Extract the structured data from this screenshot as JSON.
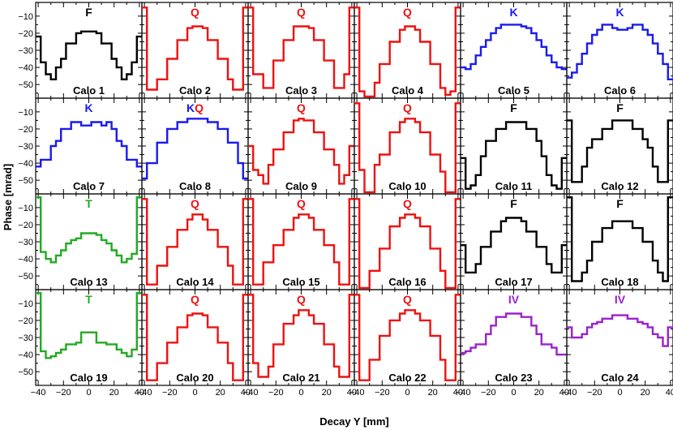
{
  "chart_data": {
    "type": "line",
    "xlabel": "Decay Y [mm]",
    "ylabel": "Phase [mrad]",
    "xlim": [
      -42,
      42
    ],
    "ylim": [
      -58,
      -2
    ],
    "x_ticks": [
      -40,
      -20,
      0,
      20,
      40
    ],
    "x_tick_labels": [
      "−40",
      "−20",
      "0",
      "20",
      "40"
    ],
    "y_ticks": [
      -10,
      -20,
      -30,
      -40,
      -50
    ],
    "y_tick_labels": [
      "−10",
      "−20",
      "−30",
      "−40",
      "−50"
    ],
    "x_edges": [
      -42,
      -38,
      -34,
      -30,
      -26,
      -22,
      -18,
      -14,
      -10,
      -6,
      -2,
      2,
      6,
      10,
      14,
      18,
      22,
      26,
      30,
      34,
      38,
      42
    ],
    "grid": false,
    "legend": "none",
    "category_colors": {
      "F": "#000000",
      "Q": "#ee1111",
      "K": "#1a1aee",
      "T": "#22aa22",
      "IV": "#9922cc"
    },
    "panels": [
      {
        "name": "Calo 1",
        "tag": "F",
        "values": [
          -22,
          -37,
          -44,
          -47,
          -40,
          -35,
          -26,
          -26,
          -20,
          -19,
          -19,
          -19,
          -20,
          -26,
          -26,
          -35,
          -40,
          -47,
          -44,
          -37,
          -22
        ]
      },
      {
        "name": "Calo 2",
        "tag": "Q",
        "values": [
          -5,
          -53,
          -53,
          -47,
          -47,
          -35,
          -35,
          -24,
          -24,
          -17,
          -16,
          -16,
          -17,
          -24,
          -24,
          -35,
          -35,
          -47,
          -53,
          -53,
          -5
        ]
      },
      {
        "name": "Calo 3",
        "tag": "Q",
        "values": [
          -5,
          -44,
          -44,
          -52,
          -52,
          -36,
          -36,
          -24,
          -24,
          -16,
          -16,
          -16,
          -17,
          -24,
          -24,
          -36,
          -36,
          -52,
          -52,
          -44,
          -5
        ]
      },
      {
        "name": "Calo 4",
        "tag": "Q",
        "values": [
          -5,
          -54,
          -57,
          -57,
          -49,
          -38,
          -38,
          -25,
          -25,
          -18,
          -16,
          -16,
          -18,
          -25,
          -25,
          -38,
          -38,
          -52,
          -56,
          -54,
          -5
        ]
      },
      {
        "name": "Calo 5",
        "tag": "K",
        "values": [
          -40,
          -41,
          -38,
          -33,
          -28,
          -24,
          -20,
          -17,
          -15,
          -15,
          -15,
          -15,
          -16,
          -17,
          -20,
          -24,
          -28,
          -33,
          -37,
          -40,
          -41
        ]
      },
      {
        "name": "Calo 6",
        "tag": "K",
        "values": [
          -46,
          -43,
          -38,
          -32,
          -26,
          -21,
          -18,
          -15,
          -15,
          -17,
          -18,
          -18,
          -17,
          -15,
          -15,
          -18,
          -21,
          -26,
          -32,
          -38,
          -47
        ]
      },
      {
        "name": "Calo 7",
        "tag": "K",
        "values": [
          -42,
          -38,
          -38,
          -30,
          -27,
          -20,
          -20,
          -16,
          -16,
          -18,
          -18,
          -16,
          -16,
          -18,
          -16,
          -20,
          -27,
          -30,
          -38,
          -38,
          -42
        ]
      },
      {
        "name": "Calo 8",
        "tag": "KQ",
        "values": [
          -49,
          -40,
          -40,
          -28,
          -28,
          -20,
          -20,
          -16,
          -16,
          -14,
          -14,
          -14,
          -14,
          -16,
          -16,
          -20,
          -20,
          -28,
          -28,
          -40,
          -49
        ]
      },
      {
        "name": "Calo 9",
        "tag": "Q",
        "values": [
          -30,
          -44,
          -47,
          -52,
          -41,
          -32,
          -32,
          -22,
          -22,
          -15,
          -14,
          -15,
          -15,
          -22,
          -22,
          -32,
          -32,
          -41,
          -52,
          -47,
          -30
        ]
      },
      {
        "name": "Calo 10",
        "tag": "Q",
        "values": [
          -5,
          -44,
          -57,
          -57,
          -41,
          -35,
          -35,
          -22,
          -22,
          -16,
          -14,
          -14,
          -16,
          -22,
          -22,
          -35,
          -35,
          -45,
          -57,
          -57,
          -5
        ]
      },
      {
        "name": "Calo 11",
        "tag": "F",
        "values": [
          -37,
          -55,
          -53,
          -47,
          -36,
          -27,
          -27,
          -20,
          -20,
          -16,
          -16,
          -16,
          -16,
          -20,
          -20,
          -27,
          -36,
          -47,
          -53,
          -55,
          -37
        ]
      },
      {
        "name": "Calo 12",
        "tag": "F",
        "values": [
          -15,
          -51,
          -51,
          -42,
          -31,
          -26,
          -26,
          -20,
          -20,
          -15,
          -15,
          -15,
          -15,
          -20,
          -20,
          -26,
          -31,
          -42,
          -51,
          -51,
          -15
        ]
      },
      {
        "name": "Calo 13",
        "tag": "T",
        "values": [
          -4,
          -36,
          -40,
          -42,
          -38,
          -35,
          -31,
          -29,
          -28,
          -25,
          -25,
          -25,
          -26,
          -29,
          -31,
          -35,
          -38,
          -42,
          -40,
          -37,
          -4
        ]
      },
      {
        "name": "Calo 14",
        "tag": "Q",
        "values": [
          -5,
          -55,
          -55,
          -44,
          -44,
          -33,
          -33,
          -23,
          -23,
          -17,
          -14,
          -14,
          -17,
          -23,
          -23,
          -33,
          -33,
          -44,
          -55,
          -55,
          -5
        ]
      },
      {
        "name": "Calo 15",
        "tag": "Q",
        "values": [
          -5,
          -55,
          -55,
          -42,
          -42,
          -32,
          -32,
          -23,
          -23,
          -16,
          -14,
          -14,
          -16,
          -23,
          -23,
          -32,
          -32,
          -42,
          -55,
          -55,
          -5
        ]
      },
      {
        "name": "Calo 16",
        "tag": "Q",
        "values": [
          -5,
          -57,
          -57,
          -47,
          -47,
          -34,
          -34,
          -21,
          -21,
          -16,
          -14,
          -14,
          -16,
          -21,
          -21,
          -34,
          -34,
          -47,
          -57,
          -57,
          -5
        ]
      },
      {
        "name": "Calo 17",
        "tag": "F",
        "values": [
          -32,
          -48,
          -48,
          -43,
          -33,
          -33,
          -24,
          -24,
          -18,
          -16,
          -16,
          -16,
          -18,
          -24,
          -24,
          -33,
          -33,
          -43,
          -48,
          -48,
          -32
        ]
      },
      {
        "name": "Calo 18",
        "tag": "F",
        "values": [
          -4,
          -53,
          -53,
          -48,
          -41,
          -30,
          -30,
          -22,
          -22,
          -18,
          -18,
          -18,
          -18,
          -22,
          -22,
          -30,
          -30,
          -41,
          -48,
          -53,
          -4
        ]
      },
      {
        "name": "Calo 19",
        "tag": "T",
        "values": [
          -4,
          -38,
          -42,
          -41,
          -39,
          -37,
          -34,
          -34,
          -33,
          -27,
          -27,
          -27,
          -33,
          -33,
          -34,
          -34,
          -37,
          -39,
          -41,
          -37,
          -4
        ]
      },
      {
        "name": "Calo 20",
        "tag": "Q",
        "values": [
          -5,
          -55,
          -55,
          -45,
          -45,
          -33,
          -33,
          -24,
          -24,
          -17,
          -16,
          -16,
          -17,
          -24,
          -24,
          -33,
          -33,
          -45,
          -55,
          -55,
          -5
        ]
      },
      {
        "name": "Calo 21",
        "tag": "Q",
        "values": [
          -5,
          -45,
          -53,
          -53,
          -47,
          -34,
          -34,
          -22,
          -22,
          -17,
          -14,
          -14,
          -17,
          -22,
          -22,
          -34,
          -34,
          -47,
          -53,
          -53,
          -5
        ]
      },
      {
        "name": "Calo 22",
        "tag": "Q",
        "values": [
          -5,
          -55,
          -55,
          -43,
          -43,
          -29,
          -29,
          -20,
          -20,
          -16,
          -14,
          -14,
          -16,
          -20,
          -20,
          -29,
          -29,
          -43,
          -55,
          -55,
          -5
        ]
      },
      {
        "name": "Calo 23",
        "tag": "IV",
        "values": [
          -39,
          -38,
          -36,
          -34,
          -34,
          -28,
          -23,
          -18,
          -18,
          -16,
          -16,
          -16,
          -18,
          -18,
          -23,
          -28,
          -34,
          -34,
          -36,
          -40,
          -40
        ]
      },
      {
        "name": "Calo 24",
        "tag": "IV",
        "values": [
          -24,
          -30,
          -30,
          -28,
          -24,
          -22,
          -21,
          -19,
          -19,
          -17,
          -17,
          -17,
          -19,
          -19,
          -21,
          -22,
          -24,
          -28,
          -30,
          -35,
          -24
        ]
      }
    ]
  }
}
